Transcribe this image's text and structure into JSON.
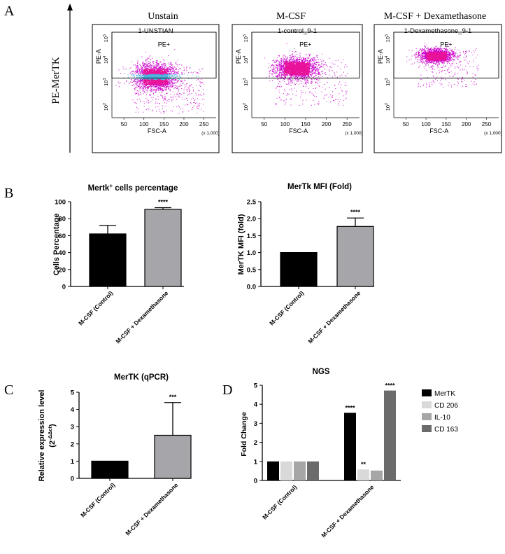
{
  "panel_letters": [
    "A",
    "B",
    "C",
    "D"
  ],
  "panelA": {
    "y_axis_label": "PE-MerTK",
    "x_tick_labels": [
      "50",
      "100",
      "150",
      "200",
      "250"
    ],
    "x_axis_label": "FSC-A",
    "x_multiplier": "(x 1,000)",
    "y_axis_title": "PE-A",
    "gate_label": "PE+",
    "plots": [
      {
        "condition": "Unstain",
        "title": "1-UNSTIAN"
      },
      {
        "condition": "M-CSF",
        "title": "1-control_9-1"
      },
      {
        "condition": "M-CSF + Dexamethasone",
        "title": "1-Dexamethasone_9-1"
      }
    ],
    "colors": {
      "gated": "#e8139a",
      "ungated": "#cc00cc",
      "neg_events": "#4fb4e0"
    }
  },
  "chart_data": [
    {
      "id": "mertk-percent",
      "type": "bar",
      "title_main": "Mertk",
      "title_sup": "+",
      "title_rest": " cells percentage",
      "ylabel": "Cells Percentage",
      "ylim": [
        0,
        100
      ],
      "yticks": [
        "0",
        "20",
        "40",
        "60",
        "80",
        "100"
      ],
      "categories": [
        "M-CSF (Control)",
        "M-CSF + Dexamethasone"
      ],
      "values": [
        62,
        91
      ],
      "errors": [
        10,
        2
      ],
      "colors": [
        "#000000",
        "#a6a6aa"
      ],
      "annotations": [
        "",
        "****"
      ]
    },
    {
      "id": "mertk-mfi",
      "type": "bar",
      "title": "MerTk MFI (Fold)",
      "ylabel": "MerTK MFI (fold)",
      "ylim": [
        0,
        2.5
      ],
      "yticks": [
        "0.0",
        "0.5",
        "1.0",
        "1.5",
        "2.0",
        "2.5"
      ],
      "categories": [
        "M-CSF (Control)",
        "M-CSF + Dexamethasone"
      ],
      "values": [
        1.0,
        1.77
      ],
      "errors": [
        0,
        0.25
      ],
      "colors": [
        "#000000",
        "#a6a6aa"
      ],
      "annotations": [
        "",
        "****"
      ]
    },
    {
      "id": "mertk-qpcr",
      "type": "bar",
      "title": "MerTK (qPCR)",
      "ylabel_line1": "Relative expression level",
      "ylabel_line2": "(2",
      "ylabel_sup": "-ΔΔct",
      "ylabel_close": ")",
      "ylim": [
        0,
        5
      ],
      "yticks": [
        "0",
        "1",
        "2",
        "3",
        "4",
        "5"
      ],
      "categories": [
        "M-CSF (Control)",
        "M-CSF + Dexamethasone"
      ],
      "values": [
        1.0,
        2.5
      ],
      "errors": [
        0,
        1.9
      ],
      "colors": [
        "#000000",
        "#a6a6aa"
      ],
      "annotations": [
        "",
        "***"
      ]
    },
    {
      "id": "ngs",
      "type": "bar",
      "title": "NGS",
      "ylabel": "Fold Change",
      "ylim": [
        0,
        5
      ],
      "yticks": [
        "0",
        "1",
        "2",
        "3",
        "4",
        "5"
      ],
      "categories": [
        "M-CSF (Control)",
        "M-CSF + Dexamethasone"
      ],
      "series": [
        {
          "name": "MerTK",
          "color": "#000000",
          "values": [
            1.0,
            3.55
          ],
          "annotations": [
            "",
            "****"
          ]
        },
        {
          "name": "CD 206",
          "color": "#d9d9d9",
          "values": [
            1.0,
            0.58
          ],
          "annotations": [
            "",
            "**"
          ]
        },
        {
          "name": "IL-10",
          "color": "#a6a6a6",
          "values": [
            1.0,
            0.52
          ],
          "annotations": [
            "",
            ""
          ]
        },
        {
          "name": "CD 163",
          "color": "#6b6b6b",
          "values": [
            1.0,
            4.72
          ],
          "annotations": [
            "",
            "****"
          ]
        }
      ],
      "legend_position": "right"
    }
  ]
}
